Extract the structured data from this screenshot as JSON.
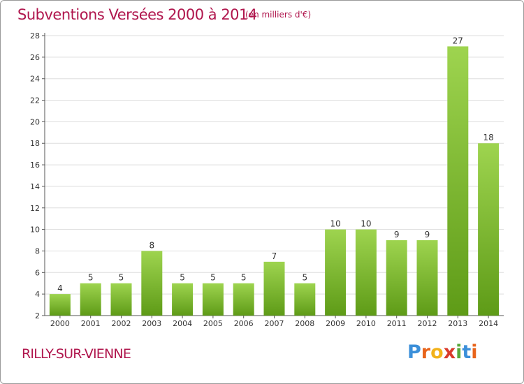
{
  "header": {
    "title": "Subventions Versées 2000 à 2014",
    "unit": "(en milliers d'€)"
  },
  "footer": {
    "commune": "RILLY-SUR-VIENNE",
    "logo_letters": [
      "P",
      "r",
      "o",
      "x",
      "i",
      "t",
      "i"
    ],
    "logo_colors": [
      "#3b8fd9",
      "#e8641b",
      "#f2b21a",
      "#d93a2b",
      "#58a83a",
      "#3b8fd9",
      "#e8641b"
    ]
  },
  "colors": {
    "accent": "#b0164d",
    "bar_top": "#9ed44f",
    "bar_bottom": "#5e9b17",
    "axis": "#555555",
    "grid": "#dddddd"
  },
  "chart_data": {
    "type": "bar",
    "categories": [
      "2000",
      "2001",
      "2002",
      "2003",
      "2004",
      "2005",
      "2006",
      "2007",
      "2008",
      "2009",
      "2010",
      "2011",
      "2012",
      "2013",
      "2014"
    ],
    "values": [
      4,
      5,
      5,
      8,
      5,
      5,
      5,
      7,
      5,
      10,
      10,
      9,
      9,
      27,
      18
    ],
    "title": "Subventions Versées 2000 à 2014",
    "xlabel": "",
    "ylabel": "",
    "ylim": [
      2,
      28
    ],
    "yticks": [
      2,
      4,
      6,
      8,
      10,
      12,
      14,
      16,
      18,
      20,
      22,
      24,
      26,
      28
    ],
    "grid": true,
    "legend": "none"
  }
}
